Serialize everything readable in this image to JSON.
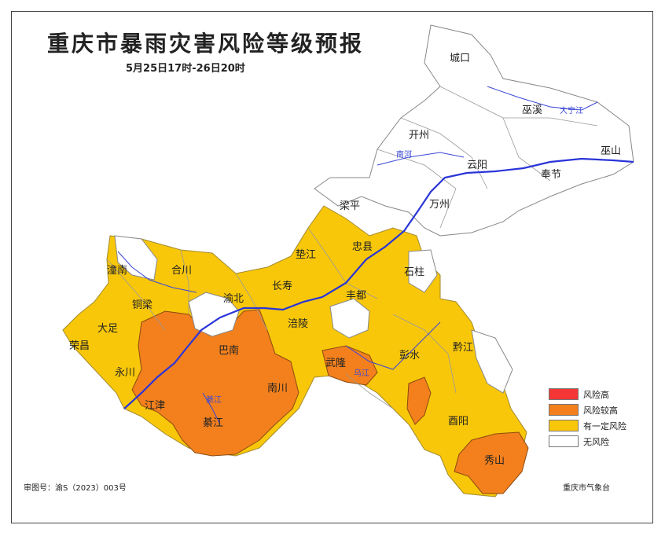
{
  "map": {
    "title": "重庆市暴雨灾害风险等级预报",
    "subtitle": "5月25日17时-26日20时",
    "approval_no": "审图号：渝S（2023）003号",
    "issuer": "重庆市气象台"
  },
  "legend": {
    "items": [
      {
        "label": "风险高",
        "color": "#f43636"
      },
      {
        "label": "风险较高",
        "color": "#f3801d"
      },
      {
        "label": "有一定风险",
        "color": "#f8c70a"
      },
      {
        "label": "无风险",
        "color": "#ffffff"
      }
    ]
  },
  "places": [
    "城口",
    "巫溪",
    "巫山",
    "开州",
    "云阳",
    "奉节",
    "万州",
    "梁平",
    "垫江",
    "忠县",
    "石柱",
    "长寿",
    "丰都",
    "涪陵",
    "潼南",
    "合川",
    "铜梁",
    "渝北",
    "大足",
    "荣昌",
    "永川",
    "江津",
    "巴南",
    "南川",
    "武隆",
    "彭水",
    "黔江",
    "酉阳",
    "秀山",
    "綦江"
  ],
  "rivers": [
    "大宁江",
    "南河",
    "乌江",
    "綦江"
  ],
  "colors": {
    "risk_high": "#f43636",
    "risk_higher": "#f3801d",
    "risk_some": "#f8c70a",
    "no_risk": "#ffffff",
    "river": "#2a35d8",
    "border": "#888888"
  }
}
